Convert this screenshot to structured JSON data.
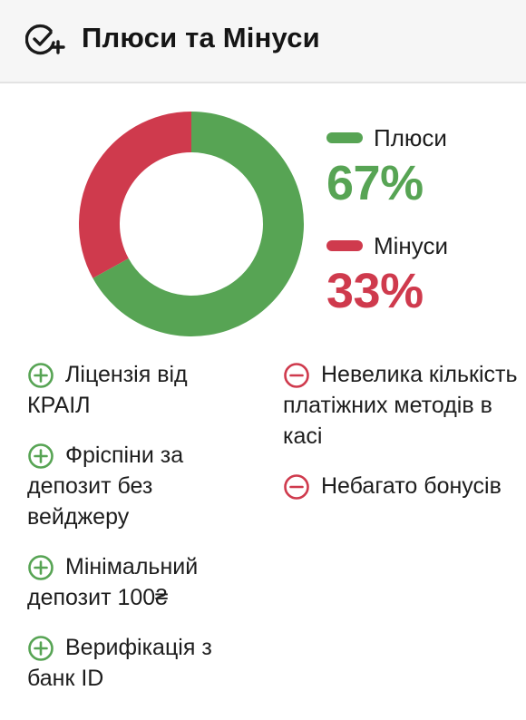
{
  "header": {
    "title": "Плюси та Мінуси",
    "icon": "check-circle-plus-icon"
  },
  "colors": {
    "pros": "#57a454",
    "cons": "#cf3a4d"
  },
  "chart_data": {
    "type": "pie",
    "series": [
      {
        "name": "Плюси",
        "value": 67
      },
      {
        "name": "Мінуси",
        "value": 33
      }
    ]
  },
  "legend": {
    "pros_label": "Плюси",
    "pros_percent": "67%",
    "cons_label": "Мінуси",
    "cons_percent": "33%"
  },
  "pros": [
    "Ліцензія від КРАІЛ",
    "Фріспіни за депозит без вейджеру",
    "Мінімальний депозит 100₴",
    "Верифікація з банк ID"
  ],
  "cons": [
    "Невелика кількість платіжних методів в касі",
    "Небагато бонусів"
  ]
}
